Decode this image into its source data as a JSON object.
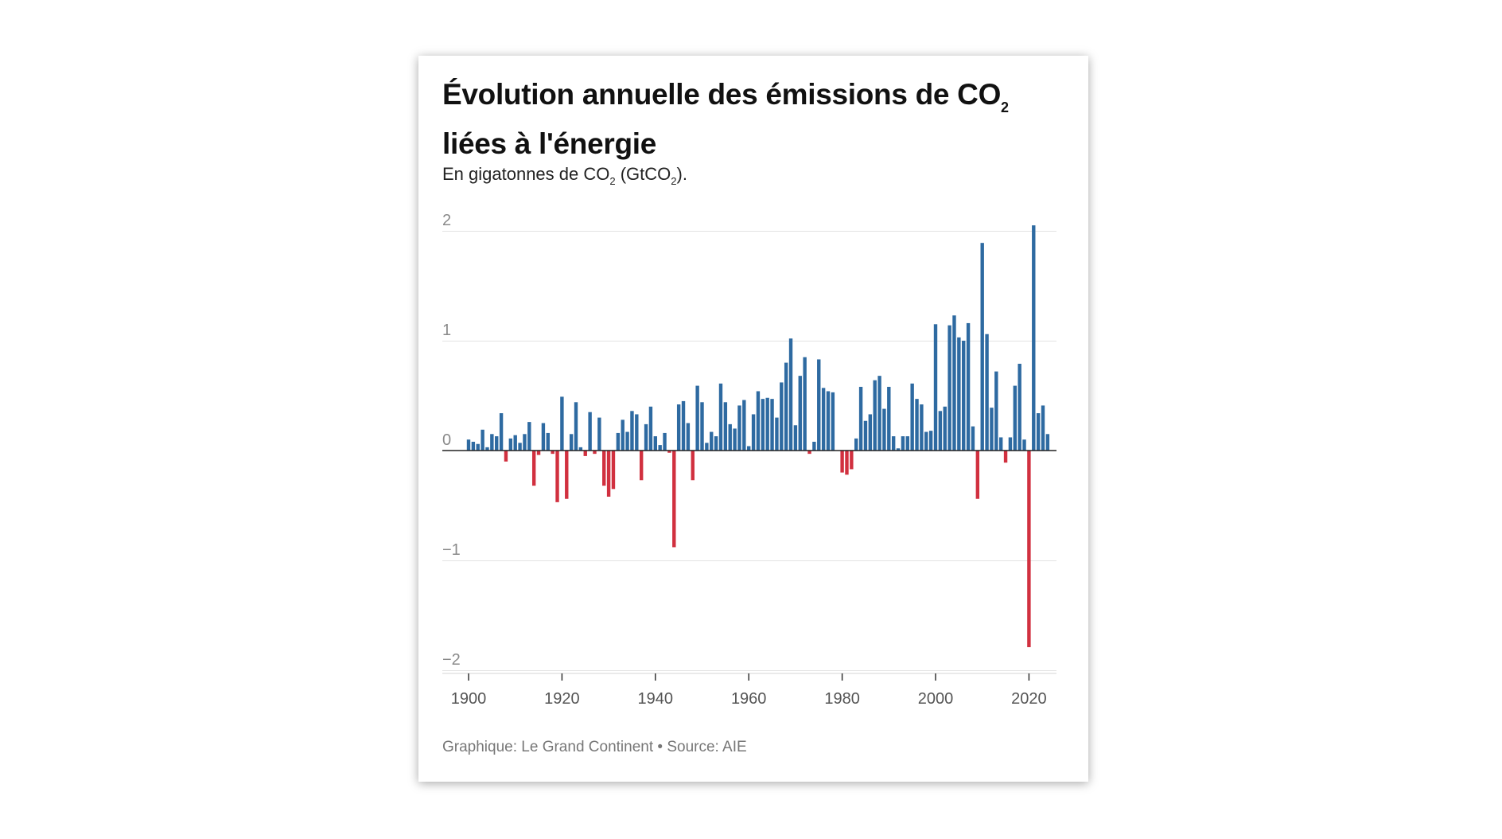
{
  "header": {
    "title_part1": "Évolution annuelle des émissions de CO",
    "title_sub": "2",
    "title_part2": "liées à l'énergie",
    "subtitle_part1": "En gigatonnes de CO",
    "subtitle_sub1": "2",
    "subtitle_part2": " (GtCO",
    "subtitle_sub2": "2",
    "subtitle_part3": ")."
  },
  "footer": {
    "text": "Graphique: Le Grand Continent • Source: AIE"
  },
  "colors": {
    "positive": "#2e6aa1",
    "negative": "#d1303f",
    "gridline": "#e3e3e3",
    "baseline": "#222222"
  },
  "chart_data": {
    "type": "bar",
    "title": "Évolution annuelle des émissions de CO₂ liées à l'énergie",
    "subtitle": "En gigatonnes de CO₂ (GtCO₂).",
    "xlabel": "",
    "ylabel": "",
    "ylim": [
      -2,
      2
    ],
    "xlim": [
      1900,
      2024
    ],
    "grid": true,
    "yticks": [
      2,
      1,
      0,
      -1,
      -2
    ],
    "ytick_labels": [
      "2",
      "1",
      "0",
      "−1",
      "−2"
    ],
    "xticks": [
      1900,
      1920,
      1940,
      1960,
      1980,
      2000,
      2020
    ],
    "xtick_labels": [
      "1900",
      "1920",
      "1940",
      "1960",
      "1980",
      "2000",
      "2020"
    ],
    "x": [
      1900,
      1901,
      1902,
      1903,
      1904,
      1905,
      1906,
      1907,
      1908,
      1909,
      1910,
      1911,
      1912,
      1913,
      1914,
      1915,
      1916,
      1917,
      1918,
      1919,
      1920,
      1921,
      1922,
      1923,
      1924,
      1925,
      1926,
      1927,
      1928,
      1929,
      1930,
      1931,
      1932,
      1933,
      1934,
      1935,
      1936,
      1937,
      1938,
      1939,
      1940,
      1941,
      1942,
      1943,
      1944,
      1945,
      1946,
      1947,
      1948,
      1949,
      1950,
      1951,
      1952,
      1953,
      1954,
      1955,
      1956,
      1957,
      1958,
      1959,
      1960,
      1961,
      1962,
      1963,
      1964,
      1965,
      1966,
      1967,
      1968,
      1969,
      1970,
      1971,
      1972,
      1973,
      1974,
      1975,
      1976,
      1977,
      1978,
      1979,
      1980,
      1981,
      1982,
      1983,
      1984,
      1985,
      1986,
      1987,
      1988,
      1989,
      1990,
      1991,
      1992,
      1993,
      1994,
      1995,
      1996,
      1997,
      1998,
      1999,
      2000,
      2001,
      2002,
      2003,
      2004,
      2005,
      2006,
      2007,
      2008,
      2009,
      2010,
      2011,
      2012,
      2013,
      2014,
      2015,
      2016,
      2017,
      2018,
      2019,
      2020,
      2021,
      2022,
      2023,
      2024
    ],
    "values": [
      0.1,
      0.08,
      0.06,
      0.19,
      0.03,
      0.15,
      0.13,
      0.34,
      -0.1,
      0.11,
      0.14,
      0.07,
      0.15,
      0.26,
      -0.32,
      -0.04,
      0.25,
      0.16,
      -0.03,
      -0.47,
      0.49,
      -0.44,
      0.15,
      0.44,
      0.03,
      -0.05,
      0.35,
      -0.03,
      0.3,
      -0.32,
      -0.42,
      -0.35,
      0.16,
      0.28,
      0.17,
      0.36,
      0.33,
      -0.27,
      0.24,
      0.4,
      0.13,
      0.05,
      0.16,
      -0.02,
      -0.88,
      0.42,
      0.45,
      0.25,
      -0.27,
      0.59,
      0.44,
      0.07,
      0.17,
      0.13,
      0.61,
      0.44,
      0.24,
      0.2,
      0.41,
      0.46,
      0.04,
      0.33,
      0.54,
      0.47,
      0.48,
      0.47,
      0.3,
      0.62,
      0.8,
      1.02,
      0.23,
      0.68,
      0.85,
      -0.03,
      0.08,
      0.83,
      0.57,
      0.54,
      0.53,
      0,
      -0.2,
      -0.22,
      -0.17,
      0.11,
      0.58,
      0.27,
      0.33,
      0.64,
      0.68,
      0.38,
      0.58,
      0.13,
      0.02,
      0.13,
      0.13,
      0.61,
      0.47,
      0.42,
      0.17,
      0.18,
      1.15,
      0.36,
      0.4,
      1.14,
      1.23,
      1.03,
      1.0,
      1.16,
      0.22,
      -0.44,
      1.89,
      1.06,
      0.39,
      0.72,
      0.12,
      -0.11,
      0.12,
      0.59,
      0.79,
      0.1,
      -1.79,
      2.05,
      0.34,
      0.41,
      0.15
    ]
  }
}
